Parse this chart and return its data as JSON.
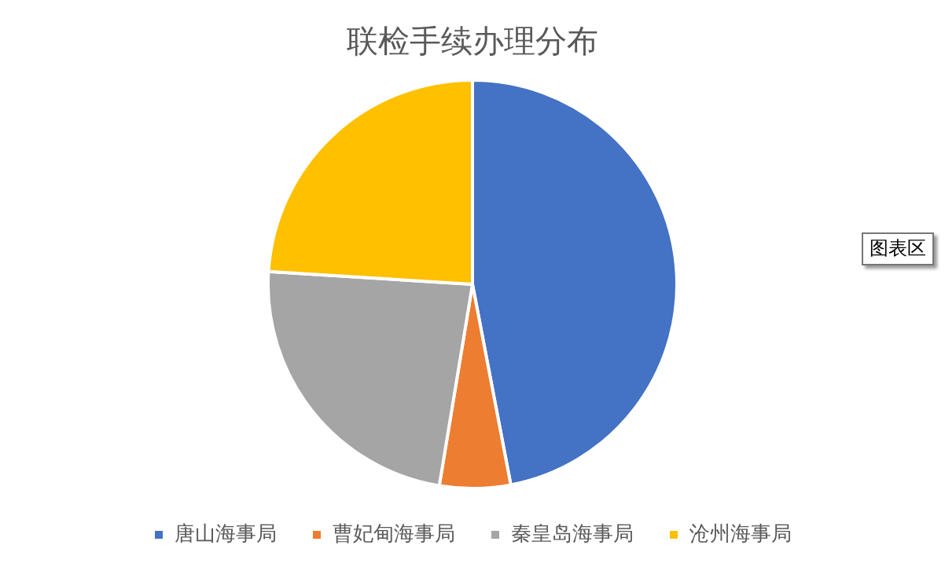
{
  "chart_data": {
    "type": "pie",
    "title": "联检手续办理分布",
    "categories": [
      "唐山海事局",
      "曹妃甸海事局",
      "秦皇岛海事局",
      "沧州海事局"
    ],
    "values": [
      47,
      5.6,
      23.4,
      24
    ],
    "colors": [
      "#4472c4",
      "#ed7d31",
      "#a5a5a5",
      "#ffc000"
    ],
    "legend": "bottom",
    "annotations": [
      "图表区"
    ]
  }
}
